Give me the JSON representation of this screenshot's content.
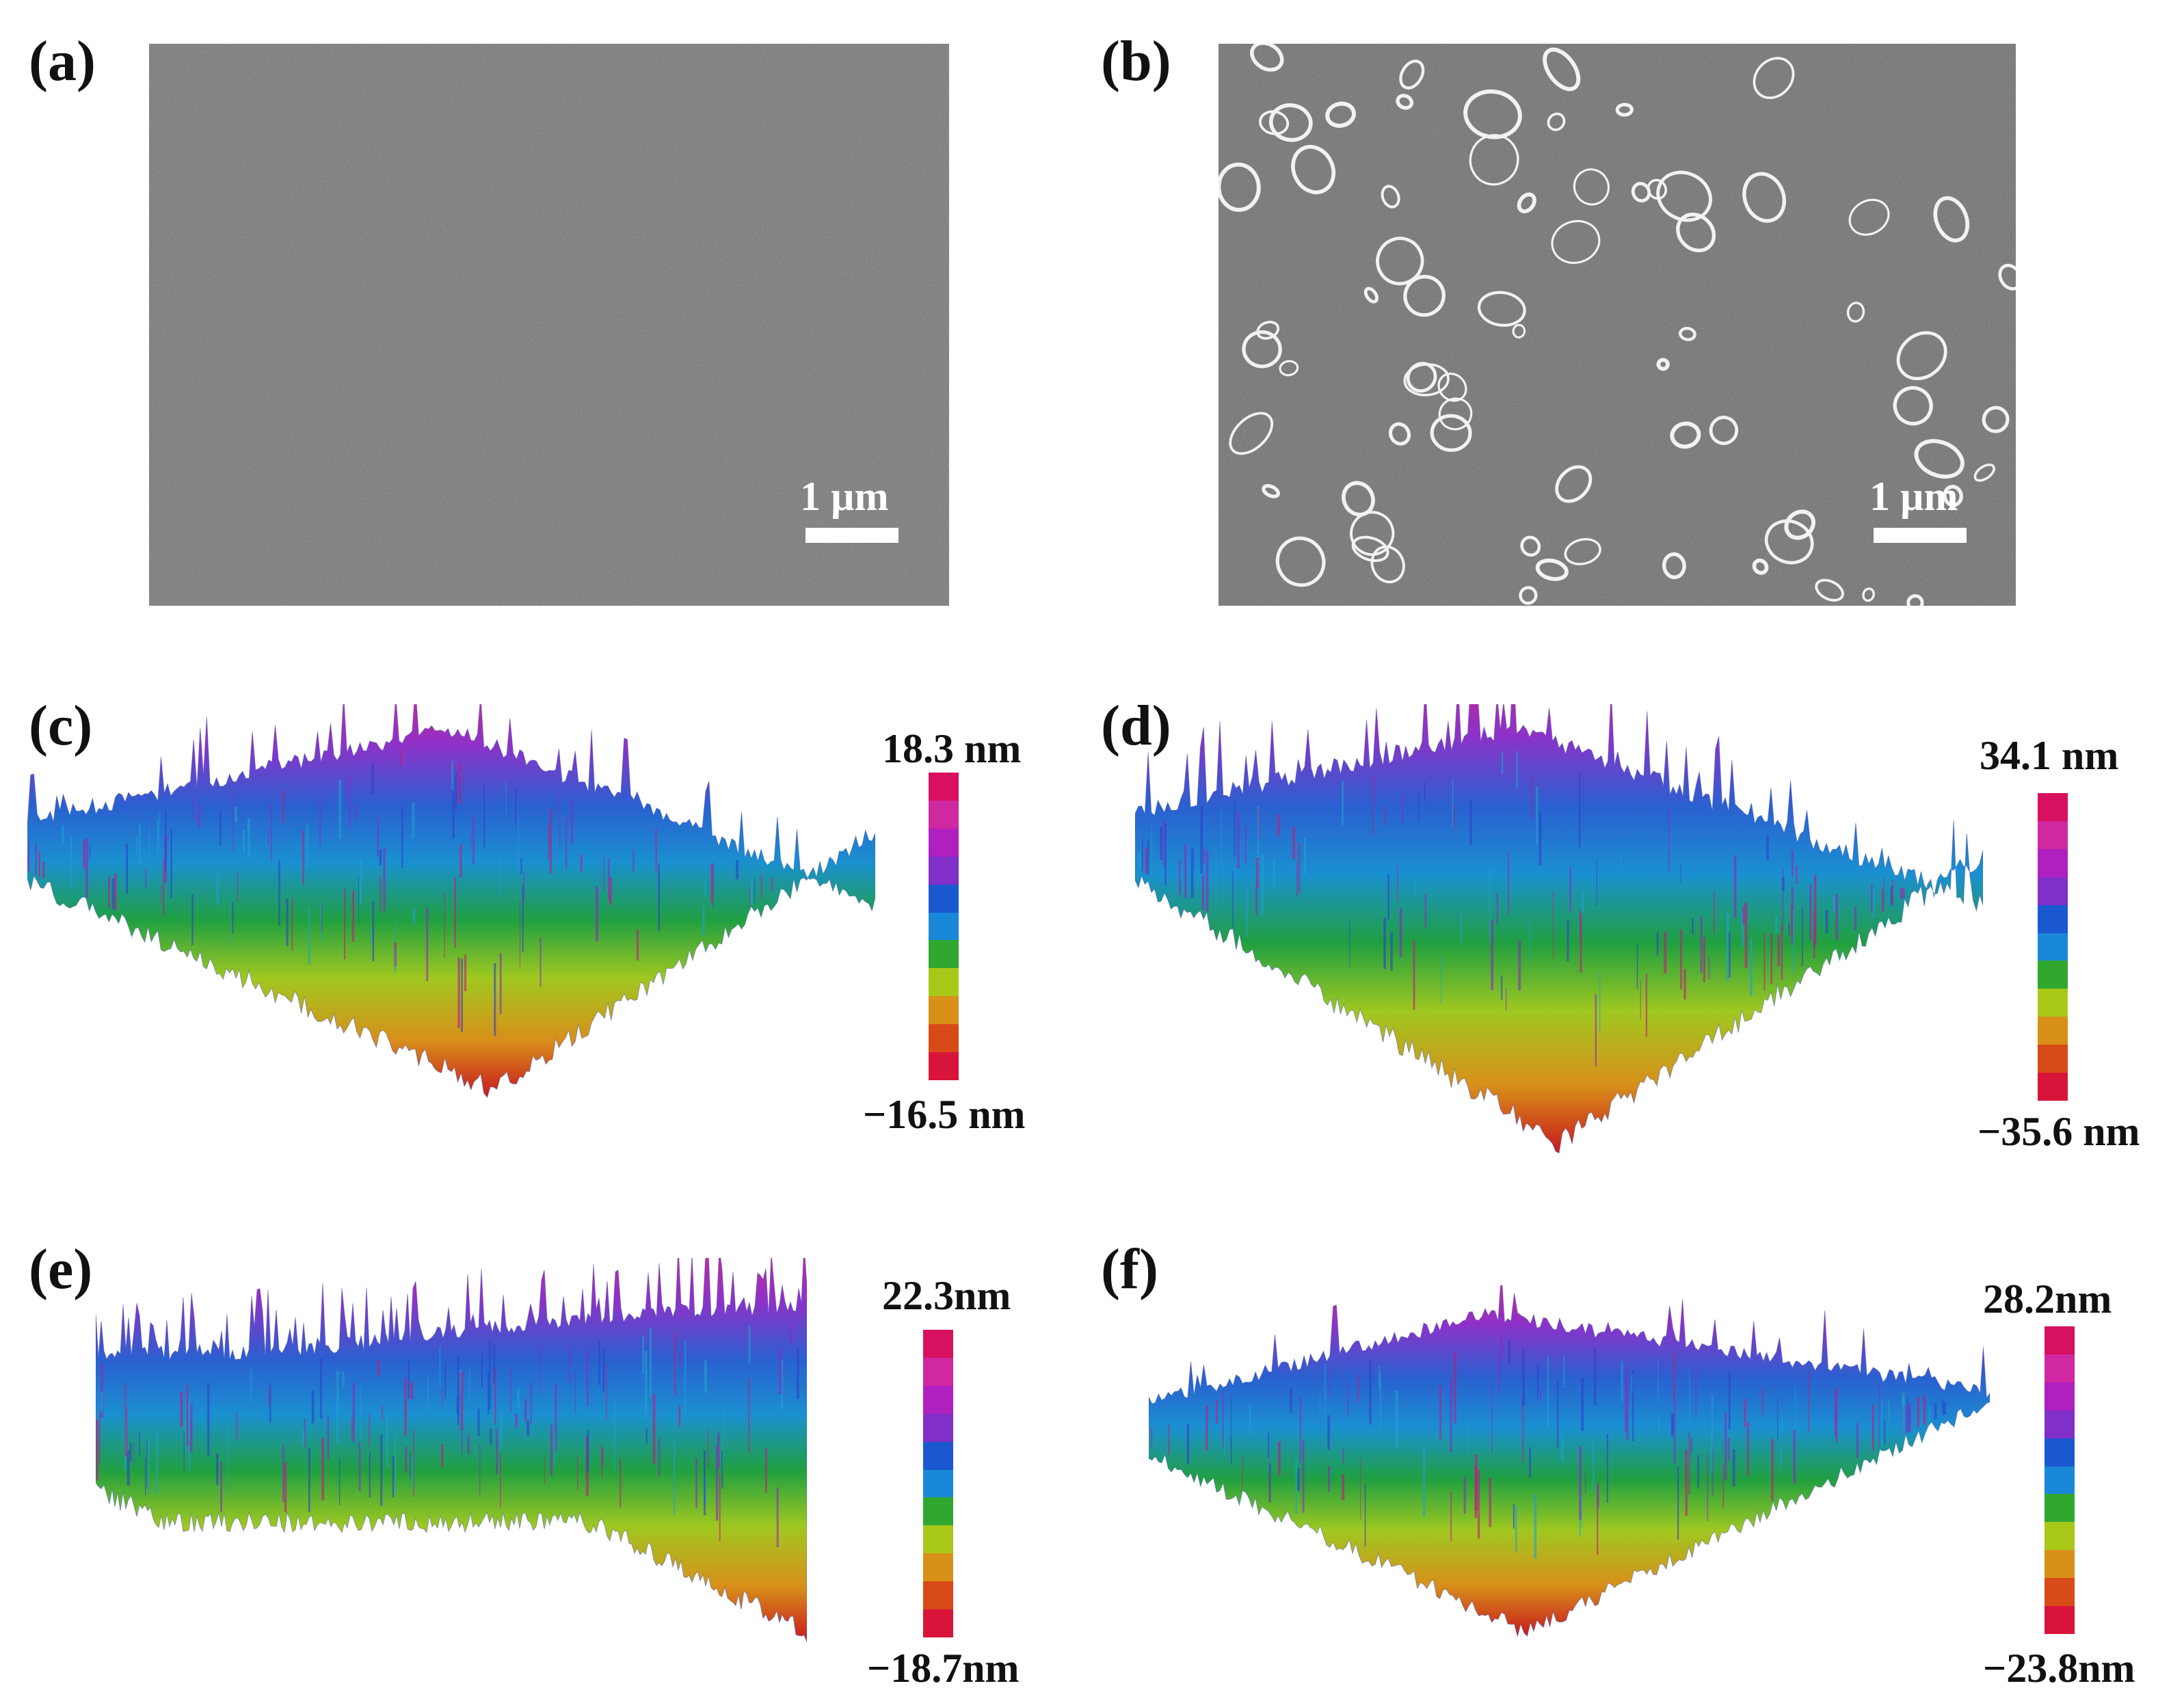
{
  "panels": {
    "a": {
      "label": "(a)",
      "scale_bar": "1 µm"
    },
    "b": {
      "label": "(b)",
      "scale_bar": "1 µm"
    },
    "c": {
      "label": "(c)",
      "max": "18.3 nm",
      "min": "−16.5 nm"
    },
    "d": {
      "label": "(d)",
      "max": "34.1 nm",
      "min": "−35.6 nm"
    },
    "e": {
      "label": "(e)",
      "max": "22.3nm",
      "min": "−18.7nm"
    },
    "f": {
      "label": "(f)",
      "max": "28.2nm",
      "min": "−23.8nm"
    }
  },
  "colorbar": [
    "#d8143a",
    "#d84a18",
    "#d89018",
    "#a8c818",
    "#30a830",
    "#1a88d8",
    "#1a58d0",
    "#8030c8",
    "#b020c0",
    "#d028a0",
    "#d81060"
  ],
  "colors": {
    "sem_background": "#6e6e6e",
    "pore_rim": "#f4f4f4"
  }
}
